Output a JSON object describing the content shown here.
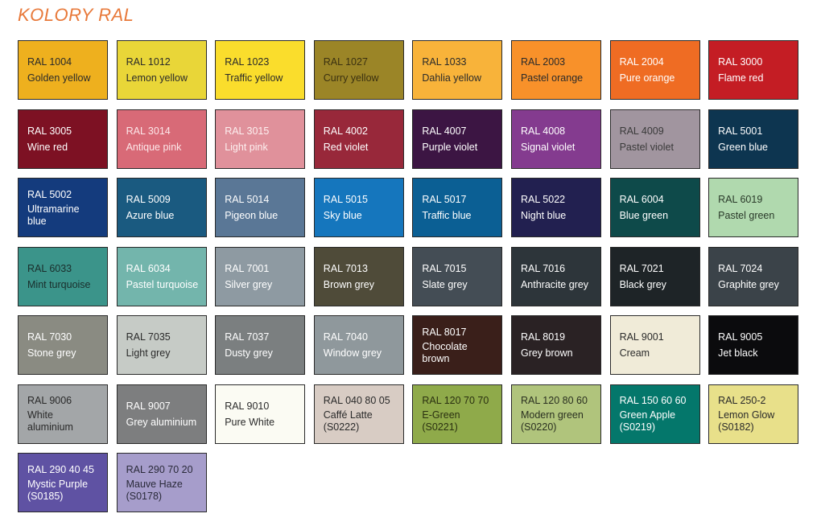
{
  "title": "KOLORY RAL",
  "swatches": [
    {
      "code": "RAL 1004",
      "name": "Golden yellow",
      "color": "#eeb01e",
      "text": "#2a2a2a"
    },
    {
      "code": "RAL 1012",
      "name": "Lemon yellow",
      "color": "#e9d638",
      "text": "#2a2a2a"
    },
    {
      "code": "RAL 1023",
      "name": "Traffic yellow",
      "color": "#fadd2c",
      "text": "#2a2a2a"
    },
    {
      "code": "RAL 1027",
      "name": "Curry yellow",
      "color": "#9b8527",
      "text": "#3a3010"
    },
    {
      "code": "RAL 1033",
      "name": "Dahlia yellow",
      "color": "#f8b33a",
      "text": "#2a2a2a"
    },
    {
      "code": "RAL 2003",
      "name": "Pastel orange",
      "color": "#f8912a",
      "text": "#2a2a2a"
    },
    {
      "code": "RAL 2004",
      "name": "Pure orange",
      "color": "#ef6c23",
      "text": "#ffffff"
    },
    {
      "code": "RAL 3000",
      "name": "Flame red",
      "color": "#c41d24",
      "text": "#ffffff"
    },
    {
      "code": "RAL 3005",
      "name": "Wine red",
      "color": "#7d1123",
      "text": "#ffffff"
    },
    {
      "code": "RAL 3014",
      "name": "Antique pink",
      "color": "#d86a77",
      "text": "#fde8ea"
    },
    {
      "code": "RAL 3015",
      "name": "Light pink",
      "color": "#e0919b",
      "text": "#fdf0f0"
    },
    {
      "code": "RAL 4002",
      "name": "Red violet",
      "color": "#98283a",
      "text": "#ffffff"
    },
    {
      "code": "RAL 4007",
      "name": "Purple violet",
      "color": "#3c1543",
      "text": "#ffffff"
    },
    {
      "code": "RAL 4008",
      "name": "Signal violet",
      "color": "#843b8f",
      "text": "#ffffff"
    },
    {
      "code": "RAL 4009",
      "name": "Pastel violet",
      "color": "#a1959f",
      "text": "#3a3a3a"
    },
    {
      "code": "RAL 5001",
      "name": "Green blue",
      "color": "#0d3550",
      "text": "#ffffff"
    },
    {
      "code": "RAL 5002",
      "name": "Ultramarine\nblue",
      "color": "#143b7d",
      "text": "#ffffff",
      "three": true
    },
    {
      "code": "RAL 5009",
      "name": "Azure blue",
      "color": "#1a5a80",
      "text": "#ffffff"
    },
    {
      "code": "RAL 5014",
      "name": "Pigeon blue",
      "color": "#5a7796",
      "text": "#ffffff"
    },
    {
      "code": "RAL 5015",
      "name": "Sky blue",
      "color": "#1576bd",
      "text": "#ffffff"
    },
    {
      "code": "RAL 5017",
      "name": "Traffic blue",
      "color": "#0b5f94",
      "text": "#ffffff"
    },
    {
      "code": "RAL 5022",
      "name": "Night blue",
      "color": "#222050",
      "text": "#ffffff"
    },
    {
      "code": "RAL 6004",
      "name": "Blue green",
      "color": "#0e4a4a",
      "text": "#ffffff"
    },
    {
      "code": "RAL 6019",
      "name": "Pastel green",
      "color": "#b0d9ae",
      "text": "#2a3a2a"
    },
    {
      "code": "RAL 6033",
      "name": "Mint turquoise",
      "color": "#3b948a",
      "text": "#1a2e2c"
    },
    {
      "code": "RAL 6034",
      "name": "Pastel turquoise",
      "color": "#73b5ac",
      "text": "#ffffff"
    },
    {
      "code": "RAL 7001",
      "name": "Silver grey",
      "color": "#8e9aa2",
      "text": "#ffffff"
    },
    {
      "code": "RAL 7013",
      "name": "Brown grey",
      "color": "#4f4b39",
      "text": "#ffffff"
    },
    {
      "code": "RAL 7015",
      "name": "Slate grey",
      "color": "#444d55",
      "text": "#ffffff"
    },
    {
      "code": "RAL 7016",
      "name": "Anthracite grey",
      "color": "#2d353a",
      "text": "#ffffff"
    },
    {
      "code": "RAL 7021",
      "name": "Black grey",
      "color": "#1e2427",
      "text": "#ffffff"
    },
    {
      "code": "RAL 7024",
      "name": "Graphite grey",
      "color": "#3b4349",
      "text": "#ffffff"
    },
    {
      "code": "RAL 7030",
      "name": "Stone grey",
      "color": "#8a8b82",
      "text": "#ffffff"
    },
    {
      "code": "RAL 7035",
      "name": "Light grey",
      "color": "#c6cbc6",
      "text": "#2a2a2a"
    },
    {
      "code": "RAL 7037",
      "name": "Dusty grey",
      "color": "#7b7f80",
      "text": "#ffffff"
    },
    {
      "code": "RAL 7040",
      "name": "Window grey",
      "color": "#8f989c",
      "text": "#ffffff"
    },
    {
      "code": "RAL 8017",
      "name": "Chocolate\nbrown",
      "color": "#3a1f1a",
      "text": "#ffffff",
      "three": true
    },
    {
      "code": "RAL 8019",
      "name": "Grey brown",
      "color": "#2a2224",
      "text": "#ffffff"
    },
    {
      "code": "RAL 9001",
      "name": "Cream",
      "color": "#f0ebd8",
      "text": "#2a2a2a"
    },
    {
      "code": "RAL 9005",
      "name": "Jet black",
      "color": "#0b0b0d",
      "text": "#ffffff"
    },
    {
      "code": "RAL 9006",
      "name": "White\naluminium",
      "color": "#a3a6a8",
      "text": "#2a2a2a",
      "three": true
    },
    {
      "code": "RAL 9007",
      "name": "Grey aluminium",
      "color": "#7d7e7f",
      "text": "#ffffff"
    },
    {
      "code": "RAL 9010",
      "name": "Pure White",
      "color": "#fbfbf3",
      "text": "#2a2a2a"
    },
    {
      "code": "RAL 040 80 05",
      "name": "Caffé Latte\n(S0222)",
      "color": "#d8ccc4",
      "text": "#2a2a2a",
      "three": true
    },
    {
      "code": "RAL 120 70 70",
      "name": "E-Green\n(S0221)",
      "color": "#8faa4a",
      "text": "#2a3010",
      "three": true
    },
    {
      "code": "RAL 120 80 60",
      "name": "Modern green\n(S0220)",
      "color": "#b0c47c",
      "text": "#2a3020",
      "three": true
    },
    {
      "code": "RAL 150 60 60",
      "name": "Green Apple\n(S0219)",
      "color": "#04776b",
      "text": "#ffffff",
      "three": true
    },
    {
      "code": "RAL 250-2",
      "name": "Lemon Glow\n(S0182)",
      "color": "#e8e08a",
      "text": "#2a2a2a",
      "three": true
    },
    {
      "code": "RAL 290 40 45",
      "name": "Mystic Purple\n(S0185)",
      "color": "#5f52a3",
      "text": "#ffffff",
      "three": true
    },
    {
      "code": "RAL 290 70 20",
      "name": "Mauve Haze\n(S0178)",
      "color": "#a69dcb",
      "text": "#2a2a3a",
      "three": true
    }
  ]
}
